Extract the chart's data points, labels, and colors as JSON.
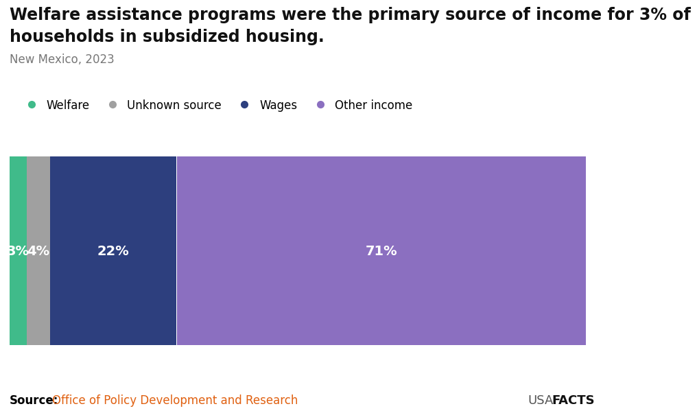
{
  "title_line1": "Welfare assistance programs were the primary source of income for 3% of",
  "title_line2": "households in subsidized housing.",
  "subtitle": "New Mexico, 2023",
  "categories": [
    "Welfare",
    "Unknown source",
    "Wages",
    "Other income"
  ],
  "values": [
    3,
    4,
    22,
    71
  ],
  "colors": [
    "#40bb8a",
    "#a0a0a0",
    "#2d3f7e",
    "#8b6fc0"
  ],
  "label_colors": [
    "#ffffff",
    "#ffffff",
    "#ffffff",
    "#ffffff"
  ],
  "source_label": "Source:",
  "source_text": "Office of Policy Development and Research",
  "source_label_color": "#000000",
  "source_text_color": "#e06010",
  "brand_usa": "USA",
  "brand_facts": "FACTS",
  "background_color": "#ffffff",
  "title_fontsize": 17,
  "subtitle_fontsize": 12,
  "legend_fontsize": 12,
  "bar_label_fontsize": 14,
  "source_fontsize": 12,
  "brand_fontsize": 13
}
